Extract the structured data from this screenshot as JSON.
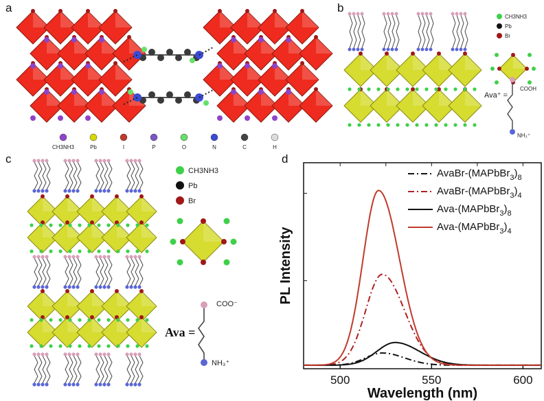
{
  "panel_labels": {
    "a": "a",
    "b": "b",
    "c": "c",
    "d": "d"
  },
  "panel_a_legend": [
    {
      "label": "CH3NH3",
      "color": "#8e44c8"
    },
    {
      "label": "Pb",
      "color": "#d8d800"
    },
    {
      "label": "I",
      "color": "#c0392b"
    },
    {
      "label": "P",
      "color": "#7a56c6"
    },
    {
      "label": "O",
      "color": "#66e06a"
    },
    {
      "label": "N",
      "color": "#3a4bd6"
    },
    {
      "label": "C",
      "color": "#444444"
    },
    {
      "label": "H",
      "color": "#dddddd"
    }
  ],
  "panel_b": {
    "legend": [
      {
        "label": "CH3NH3",
        "color": "#3fd04a"
      },
      {
        "label": "Pb",
        "color": "#111111"
      },
      {
        "label": "Br",
        "color": "#a01818"
      }
    ],
    "ava_label": "Ava⁺ =",
    "cooh": "COOH",
    "nh3": "NH₃⁺"
  },
  "panel_c": {
    "legend": [
      {
        "label": "CH3NH3",
        "color": "#3fd04a"
      },
      {
        "label": "Pb",
        "color": "#111111"
      },
      {
        "label": "Br",
        "color": "#a01818"
      }
    ],
    "ava_label": "Ava =",
    "coo": "COO⁻",
    "nh3": "NH₃⁺"
  },
  "chart_data": {
    "type": "line",
    "xlabel": "Wavelength (nm)",
    "ylabel": "PL Intensity",
    "xlim": [
      480,
      610
    ],
    "ylim": [
      0,
      1.1
    ],
    "xticks": [
      500,
      550,
      600
    ],
    "series": [
      {
        "name": "AvaBr-(MAPbBr3)8",
        "color": "#111111",
        "style": "dashdot",
        "peak": 523,
        "height": 0.07,
        "sigma": 9
      },
      {
        "name": "AvaBr-(MAPbBr3)4",
        "color": "#b02020",
        "style": "dashdot",
        "peak": 523,
        "height": 0.52,
        "sigma": 9
      },
      {
        "name": "Ava-(MAPbBr3)8",
        "color": "#111111",
        "style": "solid",
        "peak": 530,
        "height": 0.13,
        "sigma": 10
      },
      {
        "name": "Ava-(MAPbBr3)4",
        "color": "#c0392b",
        "style": "solid",
        "peak": 521,
        "height": 1.0,
        "sigma": 8.5
      }
    ],
    "legend_labels": [
      {
        "main": "AvaBr-(MAPbBr",
        "sub": "3",
        "tail": ")",
        "sub2": "8"
      },
      {
        "main": "AvaBr-(MAPbBr",
        "sub": "3",
        "tail": ")",
        "sub2": "4"
      },
      {
        "main": "Ava-(MAPbBr",
        "sub": "3",
        "tail": ")",
        "sub2": "8"
      },
      {
        "main": "Ava-(MAPbBr",
        "sub": "3",
        "tail": ")",
        "sub2": "4"
      }
    ]
  }
}
